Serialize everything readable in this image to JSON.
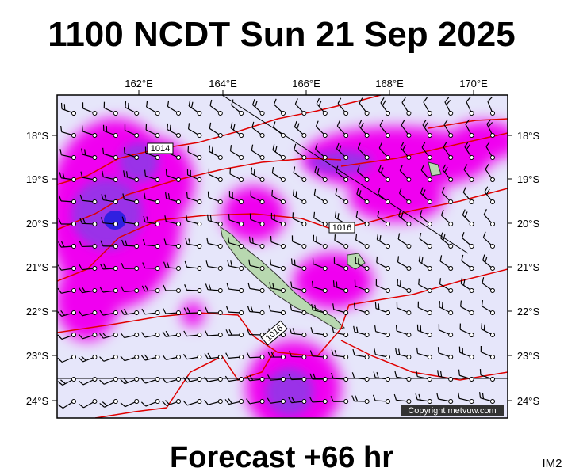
{
  "header": {
    "title": "1100 NCDT Sun 21 Sep 2025"
  },
  "map": {
    "longitude_labels": [
      "162°E",
      "164°E",
      "166°E",
      "168°E",
      "170°E"
    ],
    "latitude_labels": [
      "18°S",
      "19°S",
      "20°S",
      "21°S",
      "22°S",
      "23°S",
      "24°S"
    ],
    "isobar_labels": [
      "1014",
      "1016",
      "1016"
    ],
    "credit": "Copyright metvuw.com"
  },
  "footer": {
    "forecast": "Forecast +66 hr",
    "code": "IM2"
  }
}
